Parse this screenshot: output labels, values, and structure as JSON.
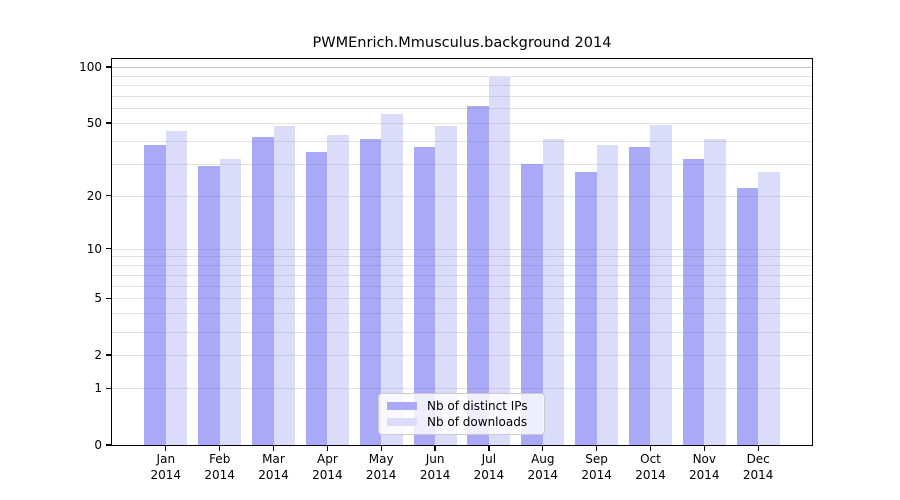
{
  "title": "PWMEnrich.Mmusculus.background 2014",
  "chart_data": {
    "type": "bar",
    "title": "PWMEnrich.Mmusculus.background 2014",
    "scale": "log10(1+x)",
    "categories": [
      "Jan",
      "Feb",
      "Mar",
      "Apr",
      "May",
      "Jun",
      "Jul",
      "Aug",
      "Sep",
      "Oct",
      "Nov",
      "Dec"
    ],
    "year_label": "2014",
    "series": [
      {
        "name": "Nb of distinct IPs",
        "color": "#a9a9f8",
        "values": [
          38,
          29,
          42,
          35,
          41,
          37,
          62,
          30,
          27,
          37,
          32,
          22
        ]
      },
      {
        "name": "Nb of downloads",
        "color": "#dbdbfa",
        "values": [
          45,
          32,
          48,
          43,
          56,
          48,
          88,
          41,
          38,
          49,
          41,
          27
        ]
      }
    ],
    "y_ticks": [
      0,
      1,
      2,
      5,
      10,
      20,
      50,
      100
    ],
    "grid_values": [
      1,
      2,
      3,
      4,
      5,
      6,
      7,
      8,
      9,
      10,
      20,
      30,
      40,
      50,
      60,
      70,
      80,
      90,
      100
    ],
    "emphasized_grid_value": 100,
    "ylim": [
      0,
      110
    ],
    "xlabel": "",
    "ylabel": "",
    "legend_position": "lower center",
    "colors": {
      "grid_minor": "rgba(125,125,135,0.22)",
      "grid_emphasized": "rgba(110,110,118,0.42)",
      "frame": "#000000",
      "background": "#ffffff",
      "text": "#000000"
    }
  }
}
